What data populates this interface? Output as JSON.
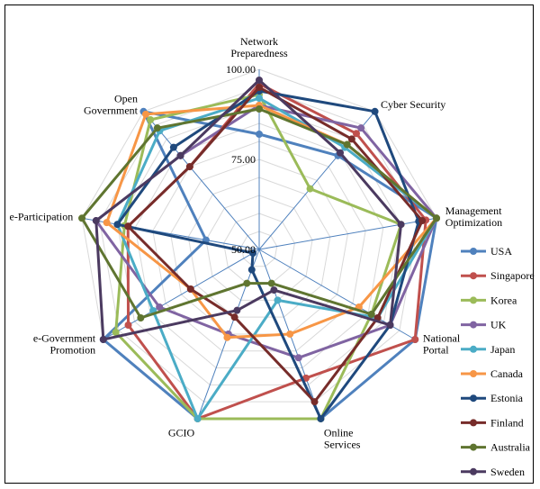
{
  "chart_data": {
    "type": "radar",
    "title": "",
    "axes": [
      "Network Preparedness",
      "Cyber Security",
      "Management Optimization",
      "National Portal",
      "Online Services",
      "GCIO",
      "e-Government Promotion",
      "e-Participation",
      "Open Government"
    ],
    "axis_label_lines": [
      [
        "Network",
        "Preparedness"
      ],
      [
        "Cyber Security"
      ],
      [
        "Management",
        "Optimization"
      ],
      [
        "National",
        "Portal"
      ],
      [
        "Online",
        "Services"
      ],
      [
        "GCIO"
      ],
      [
        "e-Government",
        "Promotion"
      ],
      [
        "e-Participation"
      ],
      [
        "Open",
        "Government"
      ]
    ],
    "rlim": [
      50,
      100
    ],
    "tick_labels": [
      "50.00",
      "75.00",
      "100.00"
    ],
    "tick_values": [
      50,
      75,
      100
    ],
    "grid": true,
    "legend_position": "right",
    "series": [
      {
        "name": "USA",
        "color": "#4F81BD",
        "values": [
          82,
          84,
          100,
          100,
          100,
          100,
          100,
          65,
          100
        ]
      },
      {
        "name": "Singapore",
        "color": "#C0504D",
        "values": [
          96,
          92,
          97,
          100,
          88,
          100,
          92,
          87,
          80
        ]
      },
      {
        "name": "Korea",
        "color": "#9BBB59",
        "values": [
          93,
          72,
          90,
          86,
          100,
          100,
          96,
          88,
          97
        ]
      },
      {
        "name": "UK",
        "color": "#8064A2",
        "values": [
          90,
          94,
          100,
          92,
          82,
          75,
          82,
          96,
          84
        ]
      },
      {
        "name": "Japan",
        "color": "#4BACC6",
        "values": [
          92,
          87,
          100,
          88,
          65,
          100,
          84,
          90,
          93
        ]
      },
      {
        "name": "Canada",
        "color": "#F79646",
        "values": [
          90,
          88,
          100,
          82,
          75,
          76,
          72,
          93,
          99
        ]
      },
      {
        "name": "Estonia",
        "color": "#1F497D",
        "values": [
          94,
          100,
          95,
          92,
          100,
          56,
          52,
          90,
          87
        ]
      },
      {
        "name": "Finland",
        "color": "#772C2A",
        "values": [
          95,
          90,
          96,
          88,
          95,
          70,
          72,
          87,
          80
        ]
      },
      {
        "name": "Australia",
        "color": "#5F7530",
        "values": [
          89,
          88,
          100,
          86,
          60,
          60,
          88,
          100,
          94
        ]
      },
      {
        "name": "Sweden",
        "color": "#4B3A60",
        "values": [
          97,
          85,
          90,
          92,
          62,
          68,
          100,
          96,
          84
        ]
      }
    ]
  }
}
